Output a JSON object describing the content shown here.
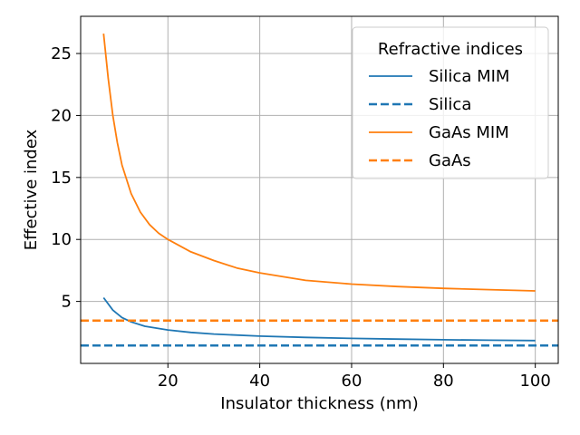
{
  "chart_data": {
    "type": "line",
    "title": "",
    "xlabel": "Insulator thickness (nm)",
    "ylabel": "Effective index",
    "xlim": [
      1,
      105
    ],
    "ylim": [
      0,
      28
    ],
    "xticks": [
      20,
      40,
      60,
      80,
      100
    ],
    "yticks": [
      5,
      10,
      15,
      20,
      25
    ],
    "grid": true,
    "legend": {
      "title": "Refractive indices",
      "placement": "top-right"
    },
    "series": [
      {
        "name": "Silica MIM",
        "style": "solid",
        "color": "#1f77b4",
        "x": [
          6,
          8,
          10,
          12,
          15,
          20,
          25,
          30,
          40,
          50,
          60,
          70,
          80,
          90,
          100
        ],
        "y": [
          5.3,
          4.3,
          3.7,
          3.35,
          3.0,
          2.7,
          2.5,
          2.37,
          2.2,
          2.1,
          2.02,
          1.96,
          1.91,
          1.87,
          1.84
        ]
      },
      {
        "name": "Silica",
        "style": "dashed",
        "color": "#1f77b4",
        "x": [
          1,
          105
        ],
        "y": [
          1.45,
          1.45
        ]
      },
      {
        "name": "GaAs MIM",
        "style": "solid",
        "color": "#ff7f0e",
        "x": [
          6,
          7,
          8,
          9,
          10,
          12,
          14,
          16,
          18,
          20,
          25,
          30,
          35,
          40,
          50,
          60,
          70,
          80,
          90,
          100
        ],
        "y": [
          26.6,
          23.0,
          20.0,
          17.8,
          16.0,
          13.7,
          12.2,
          11.2,
          10.5,
          10.0,
          9.0,
          8.3,
          7.7,
          7.3,
          6.7,
          6.4,
          6.2,
          6.05,
          5.95,
          5.85
        ]
      },
      {
        "name": "GaAs",
        "style": "dashed",
        "color": "#ff7f0e",
        "x": [
          1,
          105
        ],
        "y": [
          3.45,
          3.45
        ]
      }
    ]
  }
}
